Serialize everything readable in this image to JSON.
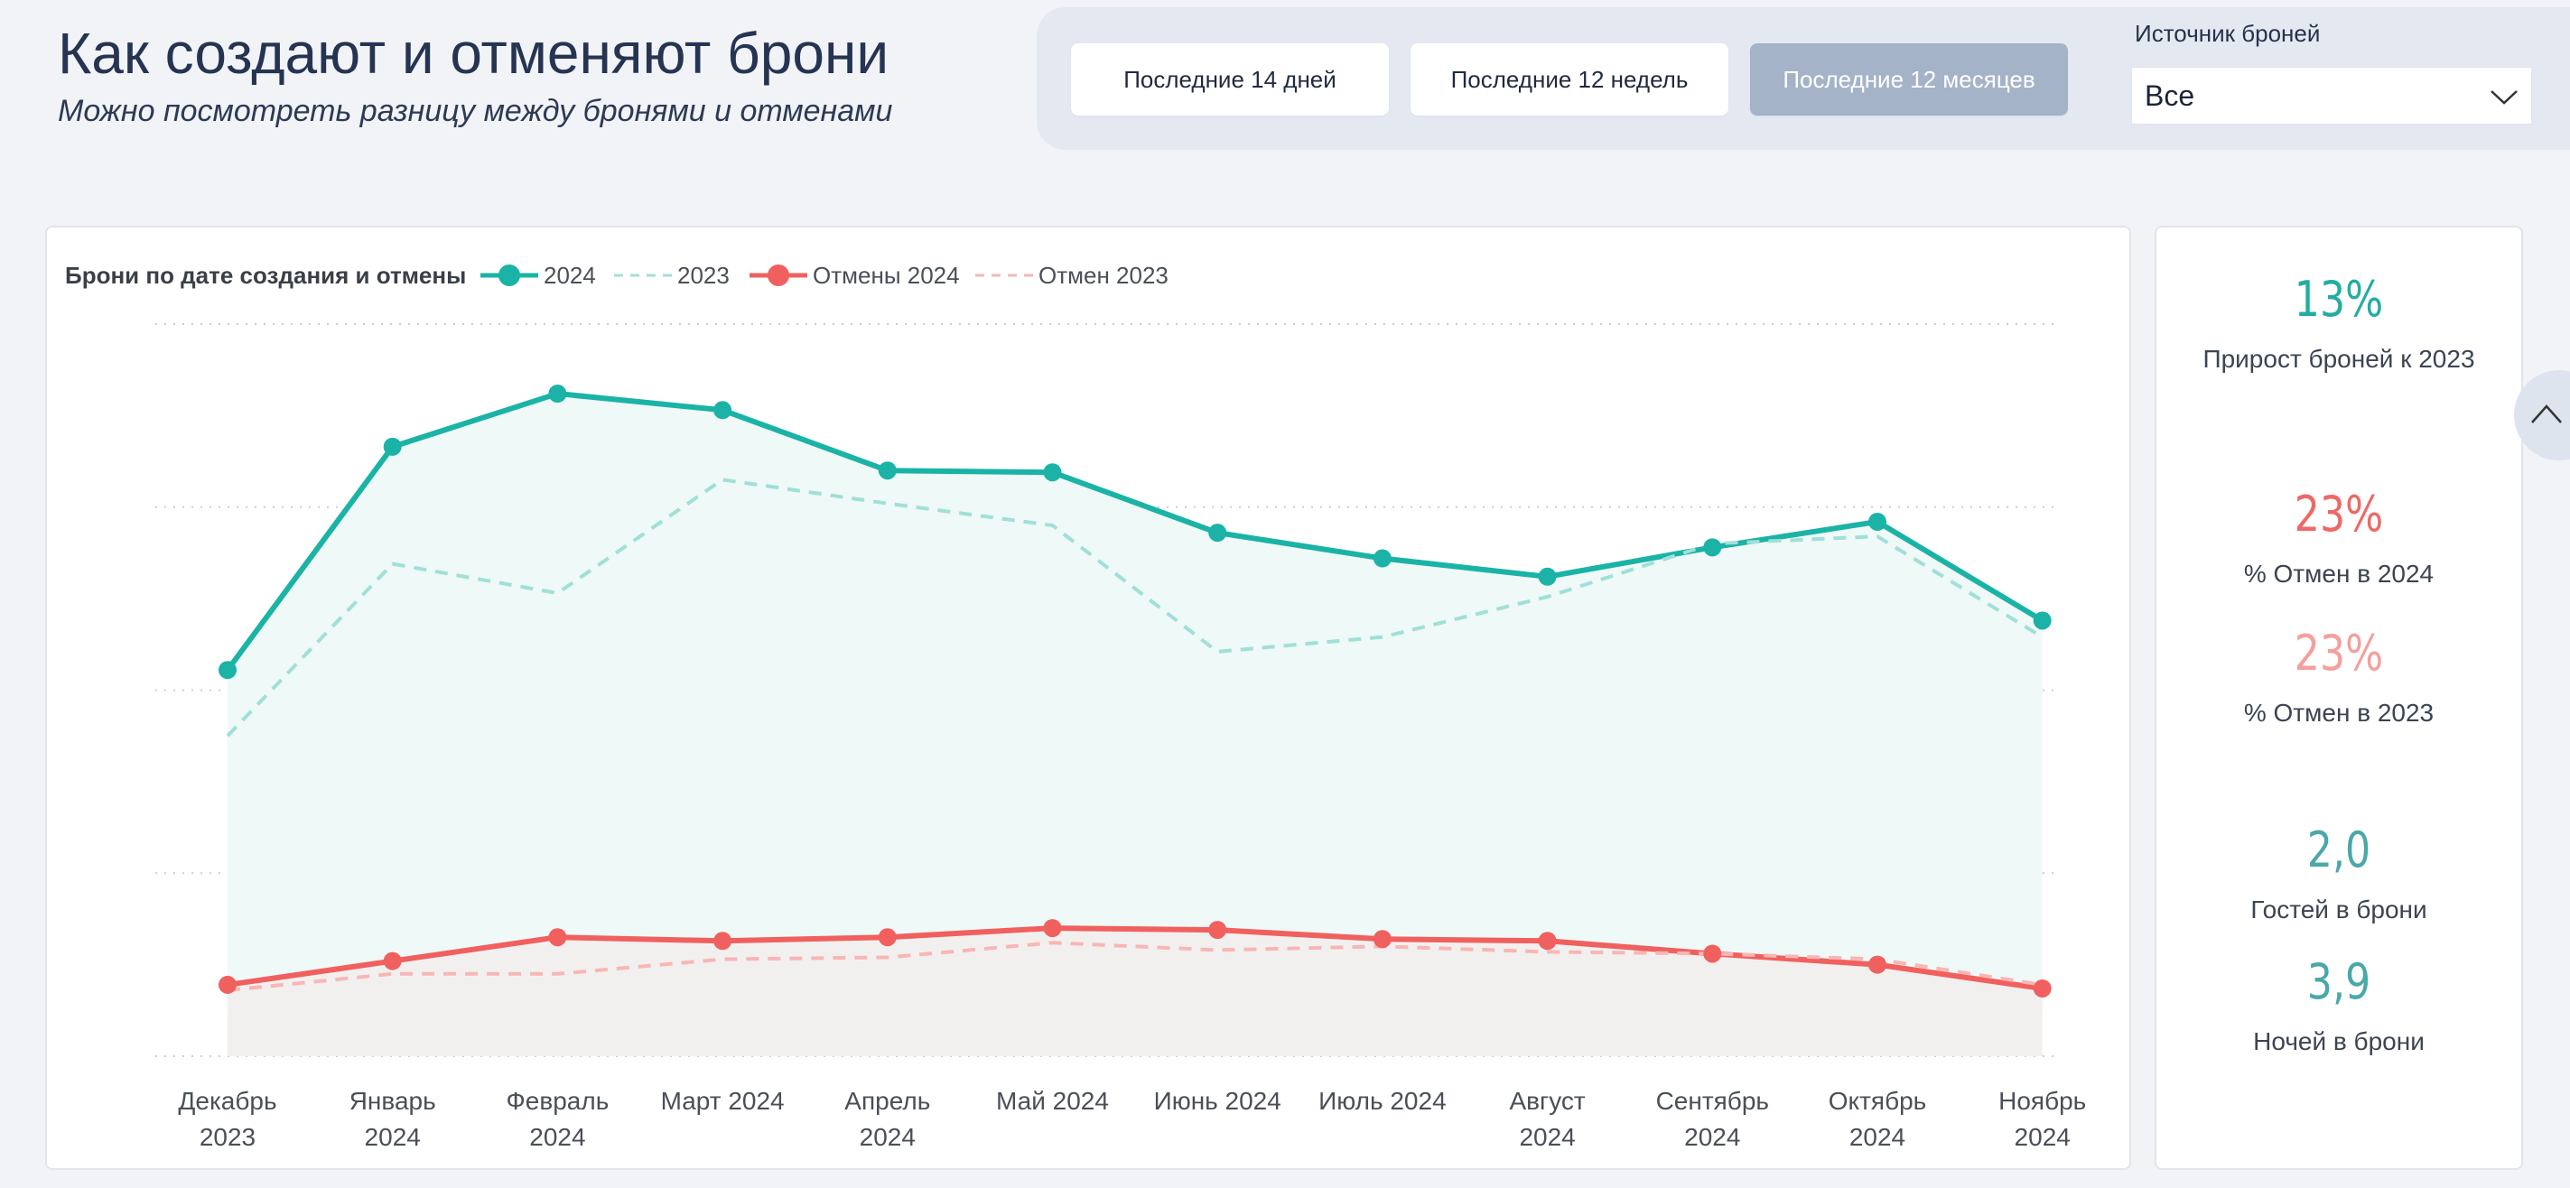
{
  "header": {
    "title": "Как создают и отменяют брони",
    "subtitle": "Можно посмотреть разницу между бронями и отменами"
  },
  "filters": {
    "periods": [
      {
        "label": "Последние 14 дней",
        "active": false
      },
      {
        "label": "Последние 12 недель",
        "active": false
      },
      {
        "label": "Последние 12 месяцев",
        "active": true
      }
    ],
    "source_label": "Источник броней",
    "source_value": "Все"
  },
  "colors": {
    "teal": "#1ab3a6",
    "teal_light": "#9fe0d8",
    "red": "#f0605f",
    "red_light": "#f8b6b4",
    "teal_fill": "#eff9f7",
    "red_fill": "#f2f0ef"
  },
  "chart_data": {
    "type": "line",
    "title": "Брони по дате создания и отмены",
    "categories": [
      [
        "Декабрь",
        "2023"
      ],
      [
        "Январь",
        "2024"
      ],
      [
        "Февраль",
        "2024"
      ],
      [
        "Март 2024"
      ],
      [
        "Апрель",
        "2024"
      ],
      [
        "Май 2024"
      ],
      [
        "Июнь 2024"
      ],
      [
        "Июль 2024"
      ],
      [
        "Август",
        "2024"
      ],
      [
        "Сентябрь",
        "2024"
      ],
      [
        "Октябрь",
        "2024"
      ],
      [
        "Ноябрь",
        "2024"
      ]
    ],
    "ylim": [
      0,
      4
    ],
    "gridlines": 5,
    "legend_position": "top-left",
    "series": [
      {
        "name": "2024",
        "style": "solid-marker",
        "color": "#1ab3a6",
        "fill": "#eff9f7",
        "values": [
          2.11,
          3.33,
          3.62,
          3.53,
          3.2,
          3.19,
          2.86,
          2.72,
          2.62,
          2.78,
          2.92,
          2.38
        ]
      },
      {
        "name": "2023",
        "style": "dashed",
        "color": "#9fe0d8",
        "values": [
          1.75,
          2.69,
          2.53,
          3.15,
          3.02,
          2.9,
          2.21,
          2.29,
          2.51,
          2.8,
          2.84,
          2.29
        ]
      },
      {
        "name": "Отмены 2024",
        "style": "solid-marker",
        "color": "#f0605f",
        "fill": "#f2f0ef",
        "values": [
          0.39,
          0.52,
          0.65,
          0.63,
          0.65,
          0.7,
          0.69,
          0.64,
          0.63,
          0.56,
          0.5,
          0.37
        ]
      },
      {
        "name": "Отмен 2023",
        "style": "dashed",
        "color": "#f8b6b4",
        "values": [
          0.36,
          0.45,
          0.45,
          0.53,
          0.54,
          0.62,
          0.58,
          0.6,
          0.57,
          0.56,
          0.53,
          0.39
        ]
      }
    ]
  },
  "kpis": [
    {
      "value": "13%",
      "label": "Прирост броней к 2023",
      "color": "#23ada1"
    },
    {
      "value": "23%",
      "label": "% Отмен в 2024",
      "color": "#ee6865"
    },
    {
      "value": "23%",
      "label": "% Отмен в 2023",
      "color": "#f4a09c"
    },
    {
      "value": "2,0",
      "label": "Гостей в брони",
      "color": "#4aa8a9"
    },
    {
      "value": "3,9",
      "label": "Ночей в брони",
      "color": "#4aa8a9"
    }
  ]
}
